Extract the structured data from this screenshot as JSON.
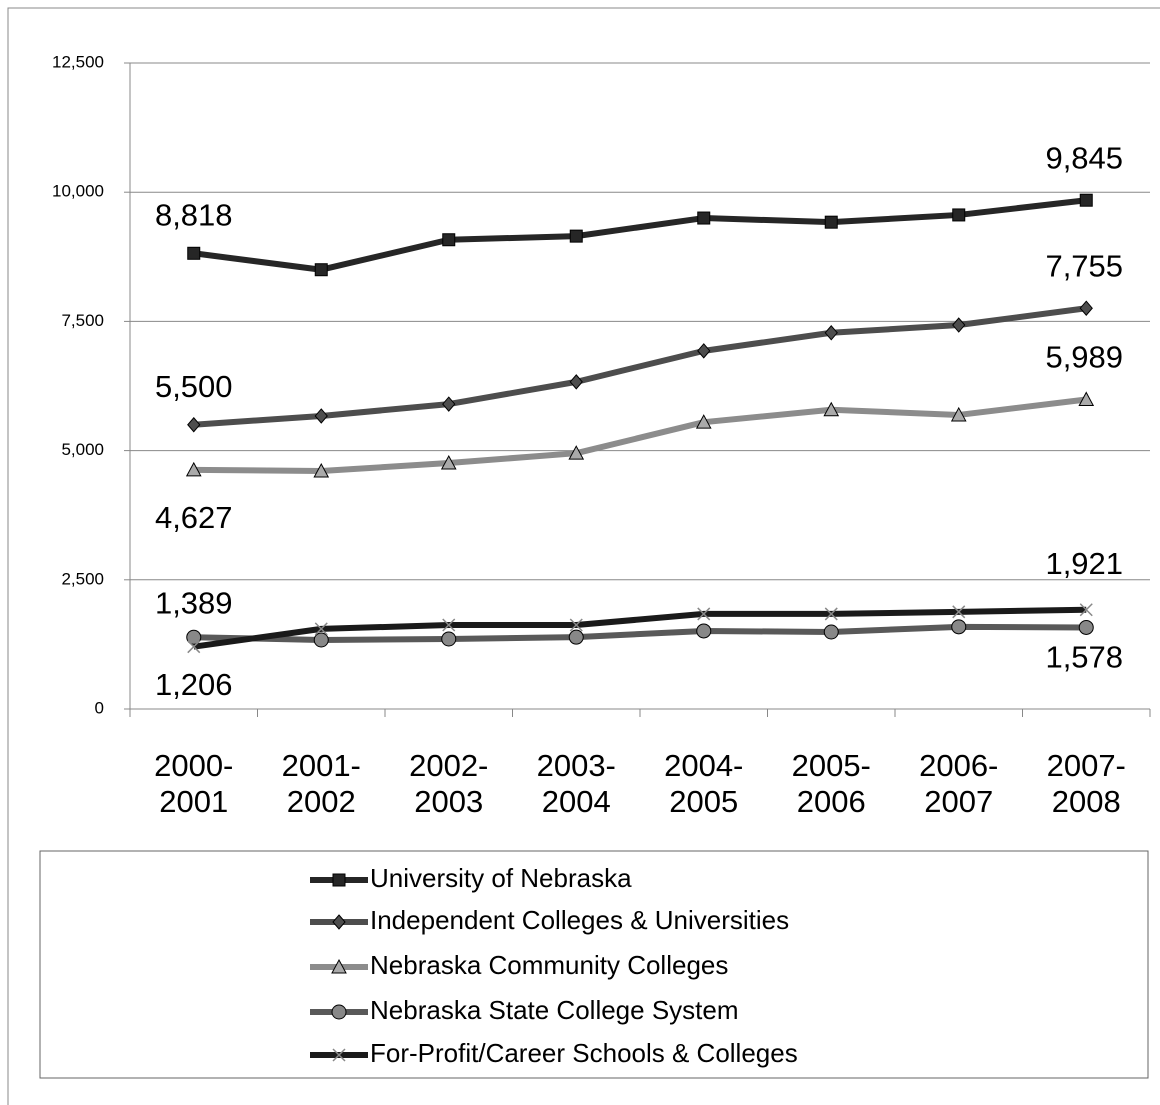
{
  "chart_data": {
    "type": "line",
    "categories": [
      "2000-2001",
      "2001-2002",
      "2002-2003",
      "2003-2004",
      "2004-2005",
      "2005-2006",
      "2006-2007",
      "2007-2008"
    ],
    "series": [
      {
        "name": "University of Nebraska",
        "color": "#262626",
        "marker": "square",
        "values": [
          8818,
          8500,
          9080,
          9150,
          9500,
          9420,
          9560,
          9845
        ],
        "value_labels": [
          "8,818",
          null,
          null,
          null,
          null,
          null,
          null,
          "9,845"
        ]
      },
      {
        "name": "Independent Colleges & Universities",
        "color": "#4d4d4d",
        "marker": "diamond",
        "values": [
          5500,
          5670,
          5900,
          6330,
          6930,
          7280,
          7430,
          7755
        ],
        "value_labels": [
          "5,500",
          null,
          null,
          null,
          null,
          null,
          null,
          "7,755"
        ]
      },
      {
        "name": "Nebraska Community Colleges",
        "color": "#8c8c8c",
        "marker": "triangle",
        "values": [
          4627,
          4605,
          4760,
          4950,
          5550,
          5790,
          5690,
          5989
        ],
        "value_labels": [
          "4,627",
          null,
          null,
          null,
          null,
          null,
          null,
          "5,989"
        ]
      },
      {
        "name": "Nebraska State College System",
        "color": "#595959",
        "marker": "circle",
        "values": [
          1389,
          1335,
          1355,
          1390,
          1510,
          1490,
          1590,
          1578
        ],
        "value_labels": [
          "1,389",
          null,
          null,
          null,
          null,
          null,
          null,
          "1,578"
        ]
      },
      {
        "name": "For-Profit/Career Schools & Colleges",
        "color": "#1a1a1a",
        "marker": "x",
        "values": [
          1206,
          1550,
          1625,
          1625,
          1840,
          1840,
          1880,
          1921
        ],
        "value_labels": [
          "1,206",
          null,
          null,
          null,
          null,
          null,
          null,
          "1,921"
        ]
      }
    ],
    "ylim": [
      0,
      12500
    ],
    "yticks": [
      0,
      {
        "value": 2500,
        "label": "2,500"
      },
      {
        "value": 5000,
        "label": "5,000"
      },
      {
        "value": 7500,
        "label": "7,500"
      },
      {
        "value": 10000,
        "label": "10,000"
      },
      {
        "value": 12500,
        "label": "12,500"
      }
    ],
    "grid": true,
    "legend": "bottom"
  }
}
